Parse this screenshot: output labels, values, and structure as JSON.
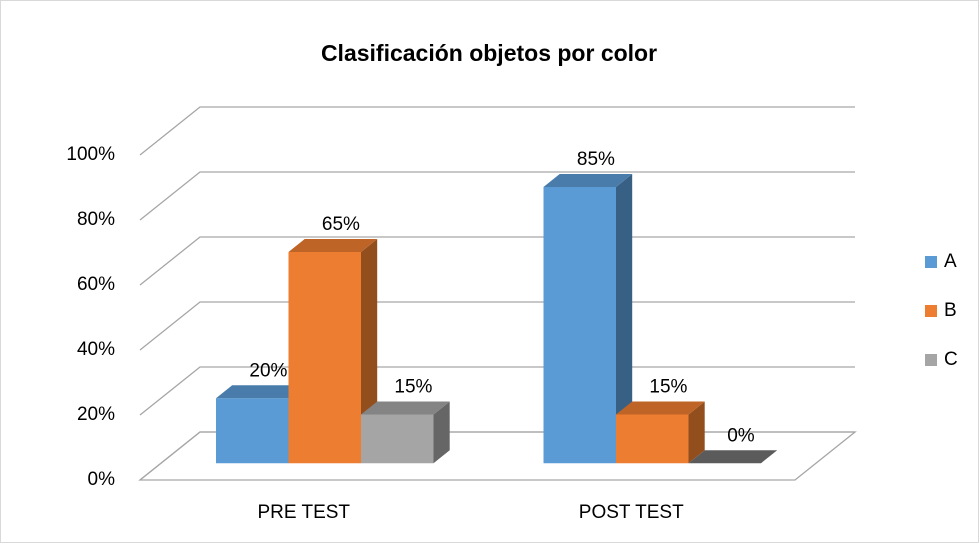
{
  "chart_data": {
    "type": "bar3d",
    "title": "Clasificación  objetos por color",
    "categories": [
      "PRE TEST",
      "POST TEST"
    ],
    "series": [
      {
        "name": "A",
        "color": "#5b9bd5",
        "values": [
          20,
          85
        ],
        "value_labels": [
          "20%",
          "85%"
        ]
      },
      {
        "name": "B",
        "color": "#ed7d31",
        "values": [
          65,
          15
        ],
        "value_labels": [
          "65%",
          "15%"
        ]
      },
      {
        "name": "C",
        "color": "#a5a5a5",
        "values": [
          15,
          0
        ],
        "value_labels": [
          "15%",
          "0%"
        ]
      }
    ],
    "ylim": [
      0,
      100
    ],
    "yticks": [
      {
        "value": 0,
        "label": "0%"
      },
      {
        "value": 20,
        "label": "20%"
      },
      {
        "value": 40,
        "label": "40%"
      },
      {
        "value": 60,
        "label": "60%"
      },
      {
        "value": 80,
        "label": "80%"
      },
      {
        "value": 100,
        "label": "100%"
      }
    ],
    "grid": true,
    "legend": "right"
  }
}
